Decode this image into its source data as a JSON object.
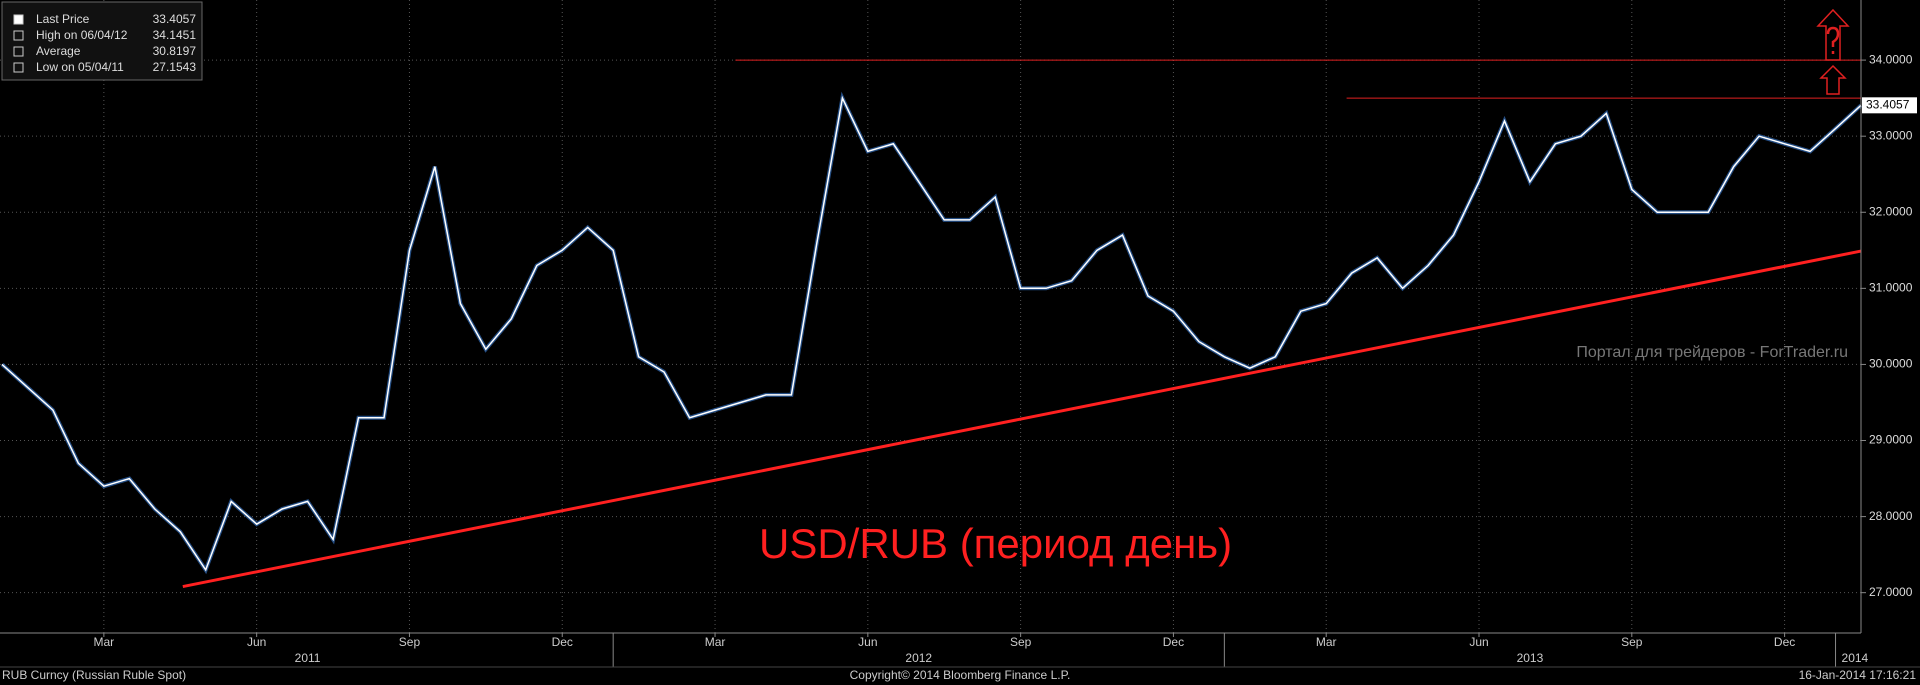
{
  "chart_data": {
    "type": "line",
    "annotation": "USD/RUB (период день)",
    "watermark": "Портал для трейдеров - ForTrader.ru",
    "footer_left": "RUB Curncy (Russian Ruble Spot)",
    "footer_center": "Copyright© 2014 Bloomberg Finance L.P.",
    "footer_right": "16-Jan-2014 17:16:21",
    "legend": [
      {
        "label": "Last Price",
        "value": 33.4057
      },
      {
        "label": "High on 06/04/12",
        "value": 34.1451
      },
      {
        "label": "Average",
        "value": 30.8197
      },
      {
        "label": "Low on 05/04/11",
        "value": 27.1543
      }
    ],
    "categories": [
      null,
      null,
      null,
      null,
      "Mar",
      null,
      null,
      null,
      null,
      null,
      "Jun",
      null,
      null,
      null,
      null,
      null,
      "Sep",
      null,
      null,
      null,
      null,
      null,
      "Dec",
      null,
      null,
      null,
      null,
      null,
      "Mar",
      null,
      null,
      null,
      null,
      null,
      "Jun",
      null,
      null,
      null,
      null,
      null,
      "Sep",
      null,
      null,
      null,
      null,
      null,
      "Dec",
      null,
      null,
      null,
      null,
      null,
      "Mar",
      null,
      null,
      null,
      null,
      null,
      "Jun",
      null,
      null,
      null,
      null,
      null,
      "Sep",
      null,
      null,
      null,
      null,
      null,
      "Dec",
      null,
      null,
      null
    ],
    "years": [
      {
        "label": "2011",
        "start": 0
      },
      {
        "label": "2012",
        "start": 24
      },
      {
        "label": "2013",
        "start": 48
      },
      {
        "label": "2014",
        "start": 72
      }
    ],
    "series": [
      {
        "name": "Last Price",
        "color": "#ffffff",
        "values": [
          30.0,
          29.7,
          29.4,
          28.7,
          28.4,
          28.5,
          28.1,
          27.8,
          27.3,
          28.2,
          27.9,
          28.1,
          28.2,
          27.7,
          29.3,
          29.3,
          31.5,
          32.6,
          30.8,
          30.2,
          30.6,
          31.3,
          31.5,
          31.8,
          31.5,
          30.1,
          29.9,
          29.3,
          29.4,
          29.5,
          29.6,
          29.6,
          31.6,
          33.5,
          32.8,
          32.9,
          32.4,
          31.9,
          31.9,
          32.2,
          31.0,
          31.0,
          31.1,
          31.5,
          31.7,
          30.9,
          30.7,
          30.3,
          30.1,
          29.95,
          30.1,
          30.7,
          30.8,
          31.2,
          31.4,
          31.0,
          31.3,
          31.7,
          32.4,
          33.2,
          32.4,
          32.9,
          33.0,
          33.3,
          32.3,
          32.0,
          32.0,
          32.0,
          32.6,
          33.0,
          32.9,
          32.8,
          33.1,
          33.4057
        ]
      }
    ],
    "hlines": [
      {
        "value": 34.0,
        "from": 28.8,
        "color": "#e02020"
      },
      {
        "value": 33.5,
        "from": 52.8,
        "color": "#e02020"
      }
    ],
    "trendline": {
      "x": [
        7.1,
        73
      ],
      "y": [
        27.08,
        31.49
      ],
      "color": "#ff2020"
    },
    "ylim": [
      26.47,
      34.79
    ],
    "yticks": [
      {
        "value": 27,
        "label": "27.0000"
      },
      {
        "value": 28,
        "label": "28.0000"
      },
      {
        "value": 29,
        "label": "29.0000"
      },
      {
        "value": 30,
        "label": "30.0000"
      },
      {
        "value": 31,
        "label": "31.0000"
      },
      {
        "value": 32,
        "label": "32.0000"
      },
      {
        "value": 33,
        "label": "33.0000"
      },
      {
        "value": 34,
        "label": "34.0000"
      }
    ],
    "grid": true
  }
}
